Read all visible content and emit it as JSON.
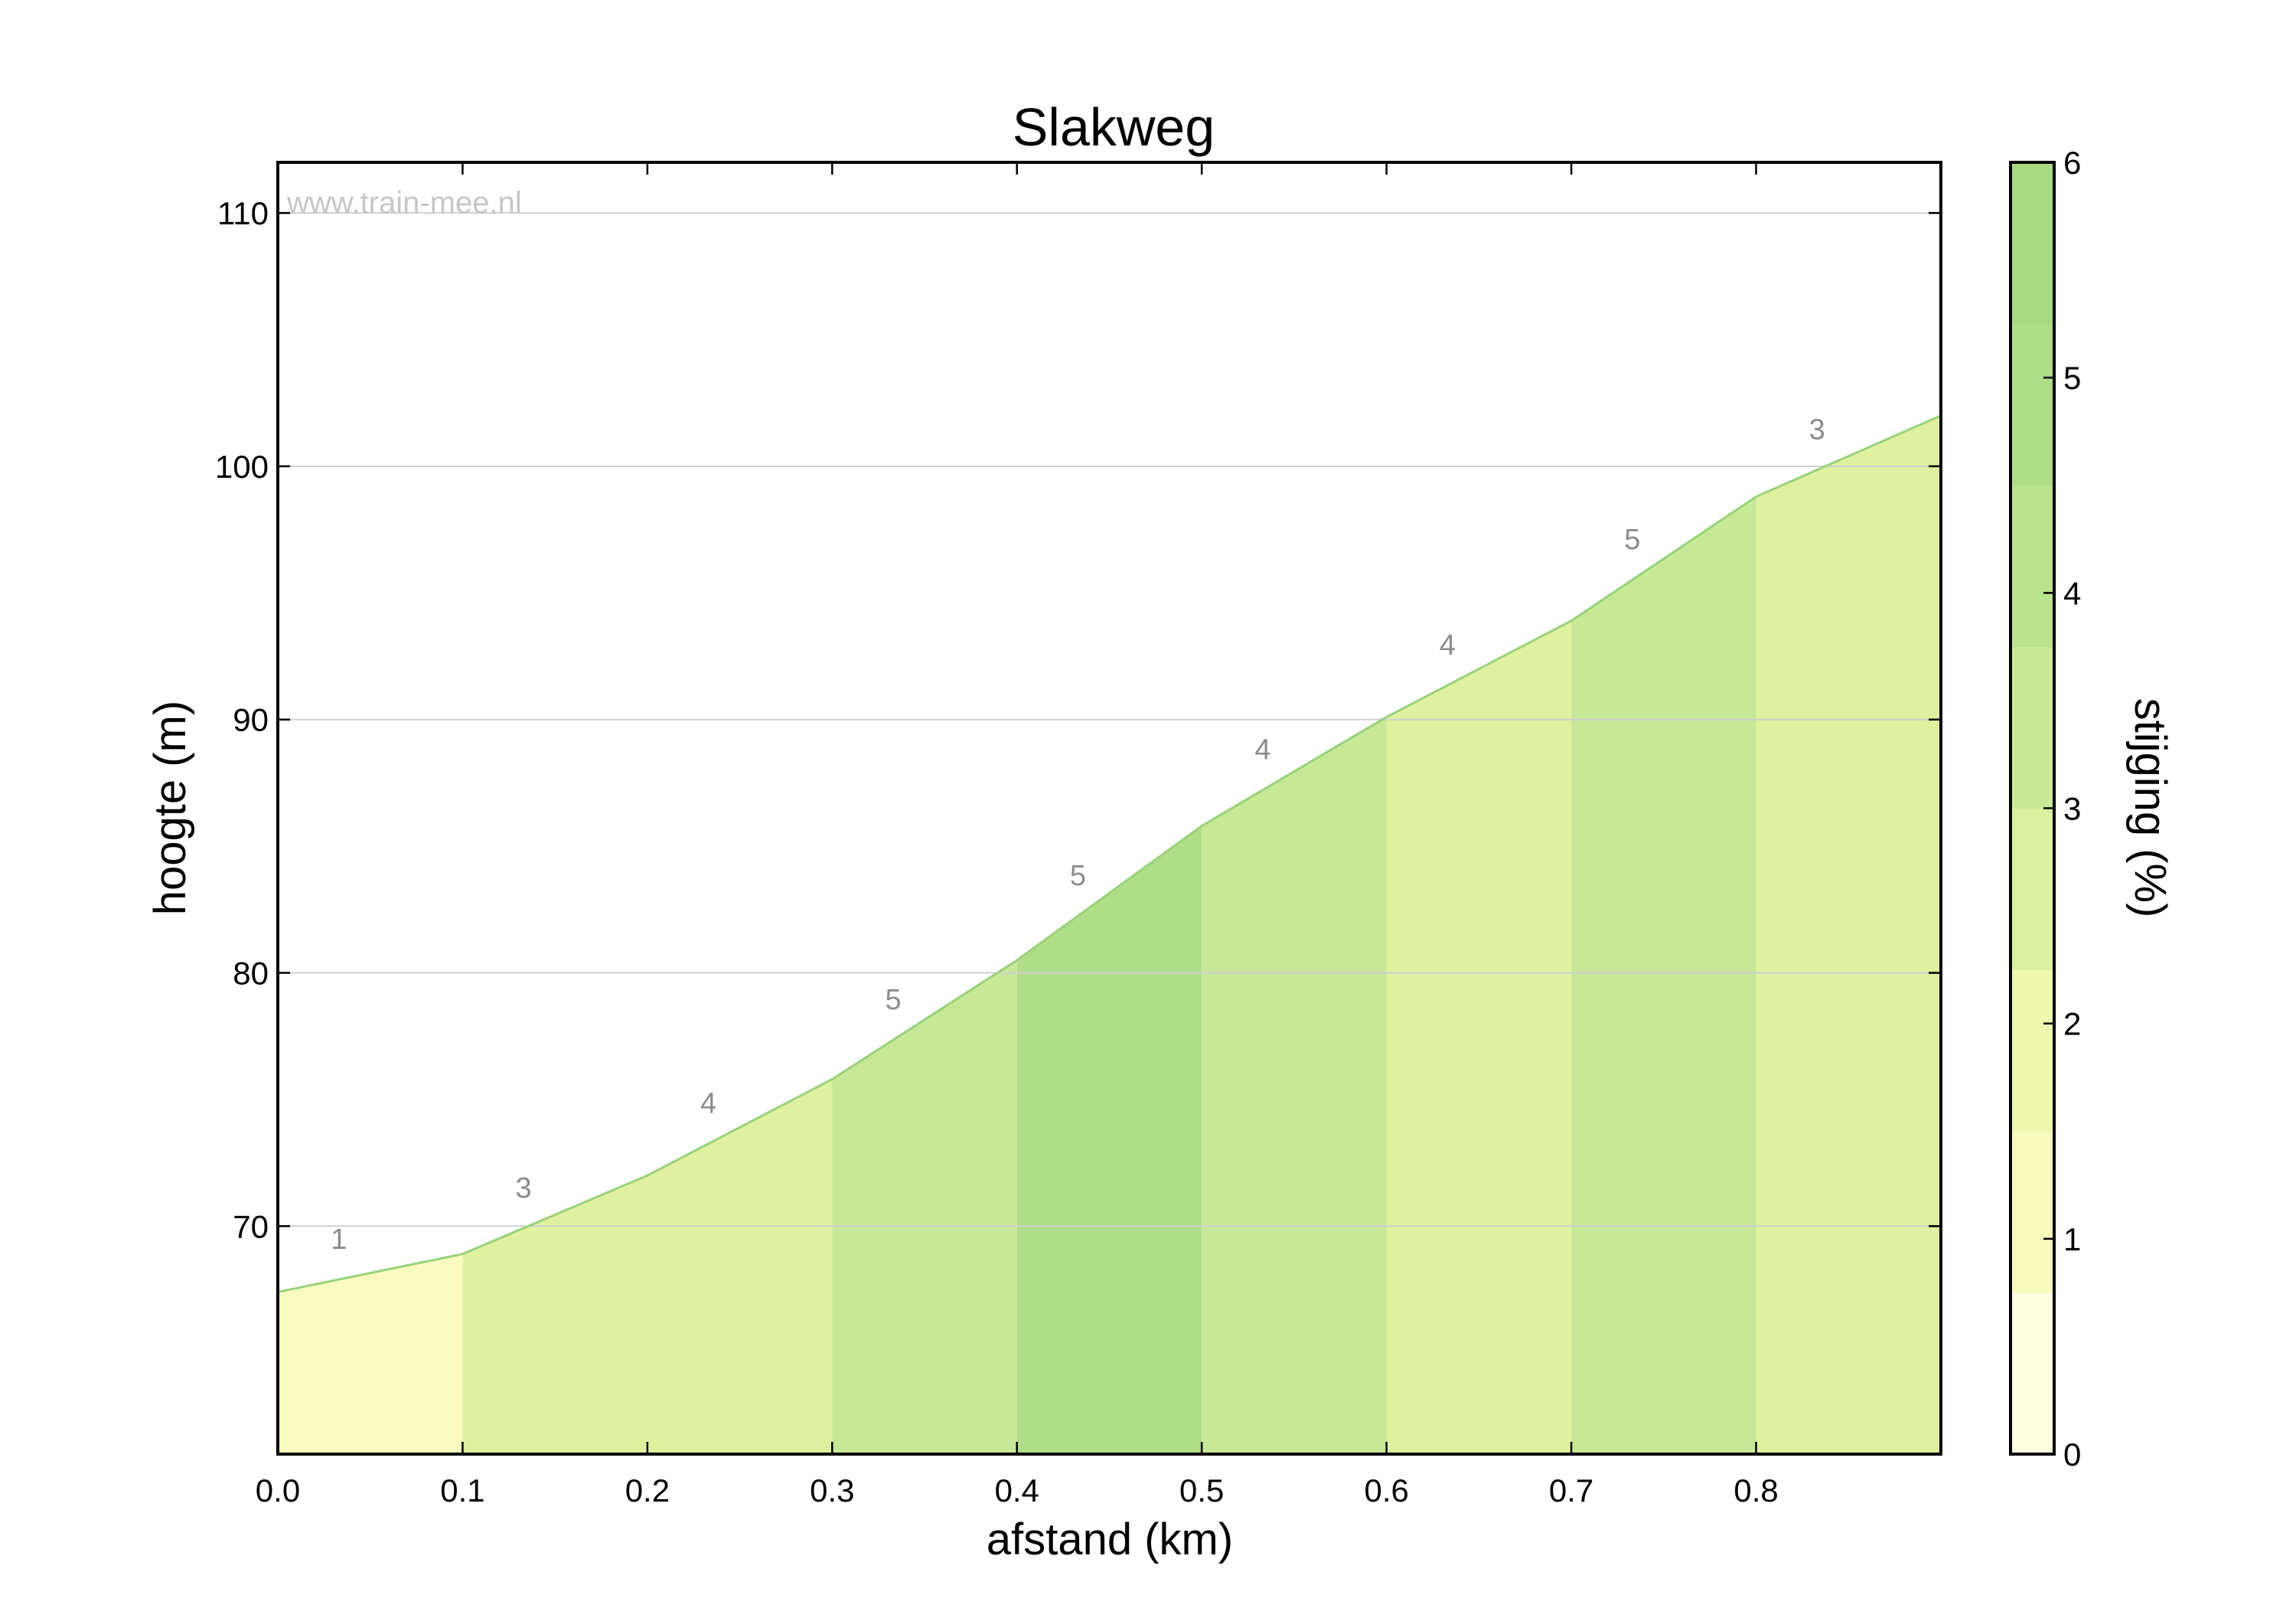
{
  "chart_data": {
    "type": "area",
    "title": "Slakweg",
    "xlabel": "afstand (km)",
    "ylabel": "hoogte (m)",
    "xlim": [
      0.0,
      0.9
    ],
    "ylim": [
      61,
      112
    ],
    "x_ticks": [
      "0.0",
      "0.1",
      "0.2",
      "0.3",
      "0.4",
      "0.5",
      "0.6",
      "0.7",
      "0.8"
    ],
    "y_ticks": [
      "70",
      "80",
      "90",
      "100",
      "110"
    ],
    "grid": "horizontal",
    "watermark": "www.train-mee.nl",
    "profile": {
      "x": [
        0.0,
        0.1,
        0.2,
        0.3,
        0.4,
        0.5,
        0.6,
        0.7,
        0.8,
        0.9
      ],
      "y": [
        67.4,
        68.9,
        72.0,
        75.8,
        80.5,
        85.8,
        90.1,
        93.9,
        98.8,
        102.0
      ]
    },
    "segments": [
      {
        "x0": 0.0,
        "x1": 0.1,
        "grade": "1",
        "color": "#f8fbbd"
      },
      {
        "x0": 0.1,
        "x1": 0.2,
        "grade": "3",
        "color": "#dff09e"
      },
      {
        "x0": 0.2,
        "x1": 0.3,
        "grade": "4",
        "color": "#dff09e"
      },
      {
        "x0": 0.3,
        "x1": 0.4,
        "grade": "5",
        "color": "#c7e896"
      },
      {
        "x0": 0.4,
        "x1": 0.5,
        "grade": "5",
        "color": "#b0dd88"
      },
      {
        "x0": 0.5,
        "x1": 0.6,
        "grade": "4",
        "color": "#c7e896"
      },
      {
        "x0": 0.6,
        "x1": 0.7,
        "grade": "4",
        "color": "#dff09e"
      },
      {
        "x0": 0.7,
        "x1": 0.8,
        "grade": "5",
        "color": "#c7e896"
      },
      {
        "x0": 0.8,
        "x1": 0.9,
        "grade": "3",
        "color": "#dff09e"
      }
    ],
    "line_color": "#98d27a",
    "colorbar": {
      "label": "stijging (%)",
      "ticks": [
        "0",
        "1",
        "2",
        "3",
        "4",
        "5",
        "6"
      ],
      "range": [
        0,
        6
      ],
      "bands": [
        "#fdfde0",
        "#f6fbbc",
        "#eef8ae",
        "#dcf0a0",
        "#c9e996",
        "#bae38f",
        "#b0dd88",
        "#a7d981"
      ]
    }
  }
}
